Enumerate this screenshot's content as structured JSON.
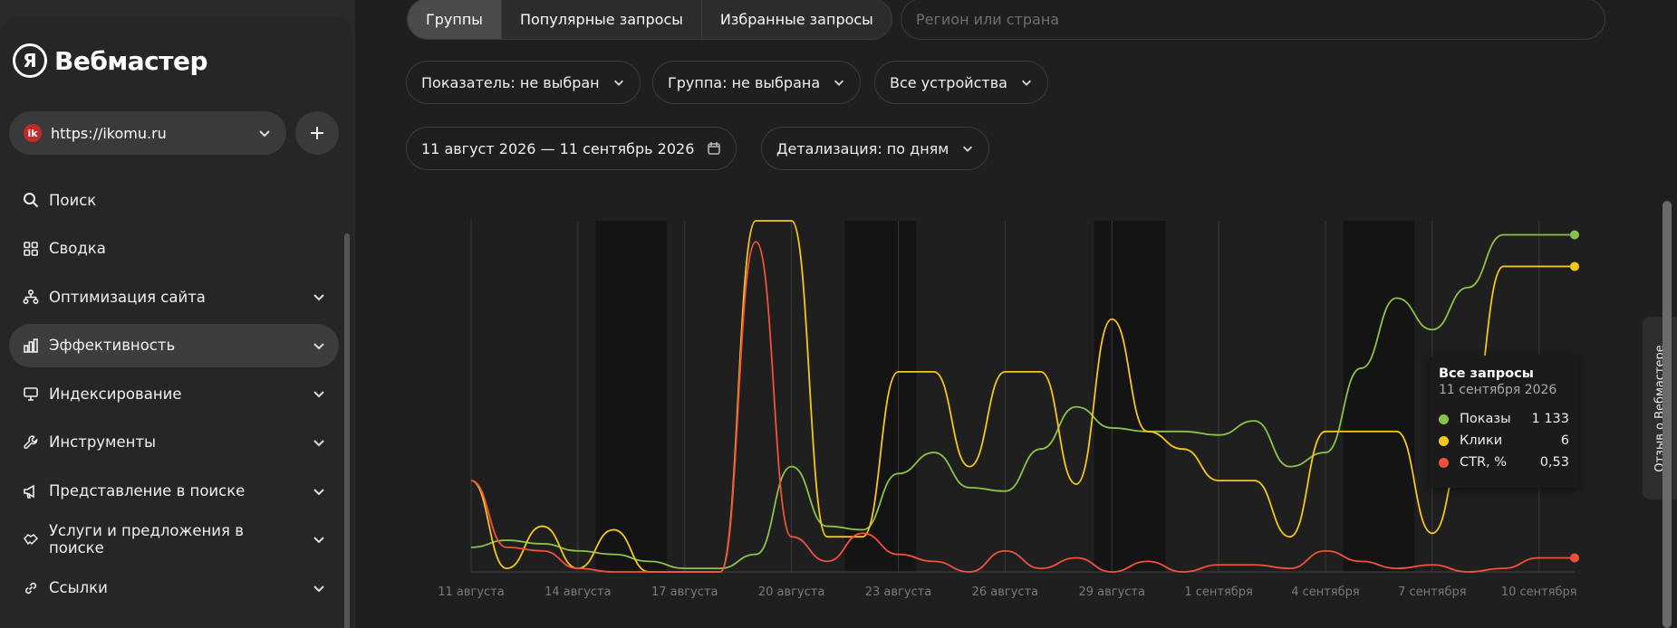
{
  "app": {
    "logo_letter": "Я",
    "title": "Вебмастер"
  },
  "site": {
    "favicon_letter": "ik",
    "url": "https://ikomu.ru"
  },
  "nav": [
    {
      "label": "Поиск",
      "icon": "search-icon",
      "has_chevron": false,
      "active": false
    },
    {
      "label": "Сводка",
      "icon": "grid-icon",
      "has_chevron": false,
      "active": false
    },
    {
      "label": "Оптимизация сайта",
      "icon": "sitemap-icon",
      "has_chevron": true,
      "active": false
    },
    {
      "label": "Эффективность",
      "icon": "bar-chart-icon",
      "has_chevron": true,
      "active": true
    },
    {
      "label": "Индексирование",
      "icon": "monitor-icon",
      "has_chevron": true,
      "active": false
    },
    {
      "label": "Инструменты",
      "icon": "wrench-icon",
      "has_chevron": true,
      "active": false
    },
    {
      "label": "Представление в поиске",
      "icon": "megaphone-icon",
      "has_chevron": true,
      "active": false
    },
    {
      "label": "Услуги и предложения в поиске",
      "icon": "handshake-icon",
      "has_chevron": true,
      "active": false
    },
    {
      "label": "Ссылки",
      "icon": "link-icon",
      "has_chevron": true,
      "active": false
    }
  ],
  "tabs": [
    {
      "label": "Группы",
      "active": true
    },
    {
      "label": "Популярные запросы",
      "active": false
    },
    {
      "label": "Избранные запросы",
      "active": false
    }
  ],
  "region": {
    "placeholder": "Регион или страна"
  },
  "filters": {
    "indicator": "Показатель: не выбран",
    "group": "Группа: не выбрана",
    "devices": "Все устройства",
    "date_range": "11 август 2026 — 11 сентябрь 2026",
    "detail": "Детализация: по дням"
  },
  "tooltip": {
    "title": "Все запросы",
    "date": "11 сентября 2026",
    "rows": [
      {
        "name": "Показы",
        "value": "1 133",
        "color": "#8bc34a"
      },
      {
        "name": "Клики",
        "value": "6",
        "color": "#f4c71a"
      },
      {
        "name": "CTR, %",
        "value": "0,53",
        "color": "#f4513a"
      }
    ]
  },
  "feedback": {
    "label": "Отзыв о Вебмастере"
  },
  "colors": {
    "shows": "#8bc34a",
    "clicks": "#f4c71a",
    "ctr": "#f4513a",
    "weekend_band": "#141414"
  },
  "chart_data": {
    "type": "line",
    "x": [
      "11 августа",
      "12 августа",
      "13 августа",
      "14 августа",
      "15 августа",
      "16 августа",
      "17 августа",
      "18 августа",
      "19 августа",
      "20 августа",
      "21 августа",
      "22 августа",
      "23 августа",
      "24 августа",
      "25 августа",
      "26 августа",
      "27 августа",
      "28 августа",
      "29 августа",
      "30 августа",
      "31 августа",
      "1 сентября",
      "2 сентября",
      "3 сентября",
      "4 сентября",
      "5 сентября",
      "6 сентября",
      "7 сентября",
      "8 сентября",
      "9 сентября",
      "10 сентября",
      "11 сентября"
    ],
    "tick_labels": [
      "11 августа",
      "14 августа",
      "17 августа",
      "20 августа",
      "23 августа",
      "26 августа",
      "29 августа",
      "1 сентября",
      "4 сентября",
      "7 сентября",
      "10 сентября"
    ],
    "series": [
      {
        "name": "Показы",
        "values": [
          0.07,
          0.09,
          0.08,
          0.06,
          0.05,
          0.03,
          0.01,
          0.01,
          0.05,
          0.3,
          0.13,
          0.12,
          0.28,
          0.34,
          0.24,
          0.23,
          0.35,
          0.47,
          0.41,
          0.4,
          0.4,
          0.39,
          0.43,
          0.3,
          0.34,
          0.58,
          0.78,
          0.69,
          0.81,
          0.96,
          0.96,
          0.96
        ]
      },
      {
        "name": "Клики",
        "values": [
          0.26,
          0.01,
          0.13,
          0.01,
          0.12,
          0.0,
          0.0,
          0.0,
          1.0,
          1.0,
          0.1,
          0.1,
          0.57,
          0.57,
          0.3,
          0.57,
          0.57,
          0.25,
          0.72,
          0.4,
          0.35,
          0.26,
          0.26,
          0.1,
          0.4,
          0.4,
          0.4,
          0.11,
          0.4,
          0.87,
          0.87,
          0.87
        ]
      },
      {
        "name": "CTR, %",
        "values": [
          0.26,
          0.07,
          0.06,
          0.01,
          0.0,
          0.0,
          0.0,
          0.0,
          0.94,
          0.1,
          0.03,
          0.11,
          0.05,
          0.03,
          0.0,
          0.06,
          0.01,
          0.04,
          0.0,
          0.03,
          0.0,
          0.02,
          0.02,
          0.01,
          0.06,
          0.03,
          0.01,
          0.02,
          0.0,
          0.01,
          0.04,
          0.04
        ]
      }
    ],
    "weekend_ranges": [
      [
        4,
        5
      ],
      [
        11,
        12
      ],
      [
        18,
        19
      ],
      [
        25,
        26
      ]
    ],
    "grid": true,
    "ylim": [
      0,
      1
    ]
  }
}
